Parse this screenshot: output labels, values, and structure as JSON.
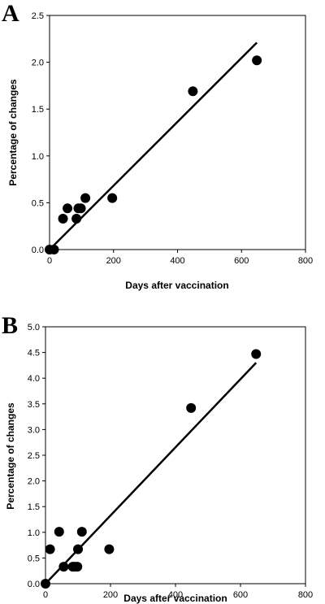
{
  "chart_data": [
    {
      "panel": "A",
      "type": "scatter",
      "xlabel": "Days after vaccination",
      "ylabel": "Percentage of changes",
      "xlim": [
        0,
        800
      ],
      "ylim": [
        0,
        2.5
      ],
      "xticks": [
        "0",
        "200",
        "400",
        "600",
        "800"
      ],
      "yticks": [
        "0.0",
        "0.5",
        "1.0",
        "1.5",
        "2.0",
        "2.5"
      ],
      "x": [
        0,
        14,
        42,
        56,
        84,
        90,
        98,
        112,
        196,
        448,
        648
      ],
      "y": [
        0.0,
        0.0,
        0.33,
        0.44,
        0.33,
        0.44,
        0.44,
        0.55,
        0.55,
        1.69,
        2.02
      ],
      "trendline": {
        "x": [
          0,
          648
        ],
        "y": [
          0.0,
          2.21
        ]
      },
      "grid": false
    },
    {
      "panel": "B",
      "type": "scatter",
      "xlabel": "Days after vaccination",
      "ylabel": "Percentage of changes",
      "xlim": [
        0,
        800
      ],
      "ylim": [
        0,
        5.0
      ],
      "xticks": [
        "0",
        "200",
        "400",
        "600",
        "800"
      ],
      "yticks": [
        "0.0",
        "0.5",
        "1.0",
        "1.5",
        "2.0",
        "2.5",
        "3.0",
        "3.5",
        "4.0",
        "4.5",
        "5.0"
      ],
      "x": [
        0,
        14,
        42,
        56,
        84,
        90,
        98,
        100,
        112,
        196,
        448,
        648
      ],
      "y": [
        0.0,
        0.67,
        1.01,
        0.33,
        0.33,
        0.33,
        0.33,
        0.67,
        1.01,
        0.67,
        3.42,
        4.47
      ],
      "trendline": {
        "x": [
          0,
          648
        ],
        "y": [
          0.0,
          4.3
        ]
      },
      "grid": false
    }
  ]
}
